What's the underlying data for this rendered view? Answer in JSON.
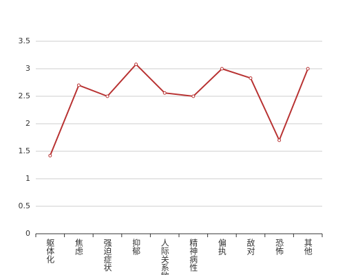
{
  "chart_data": {
    "type": "line",
    "categories": [
      "躯体化",
      "焦虑",
      "强迫症状",
      "抑郁",
      "人际关系敏感",
      "精神病性",
      "偏执",
      "敌对",
      "恐怖",
      "其他"
    ],
    "values": [
      1.42,
      2.7,
      2.5,
      3.08,
      2.56,
      2.5,
      3.0,
      2.83,
      1.7,
      3.0
    ],
    "color": "#b83232",
    "ylim": [
      0,
      3.5
    ],
    "yticks": [
      0,
      0.5,
      1,
      1.5,
      2,
      2.5,
      3,
      3.5
    ],
    "grid": true
  }
}
